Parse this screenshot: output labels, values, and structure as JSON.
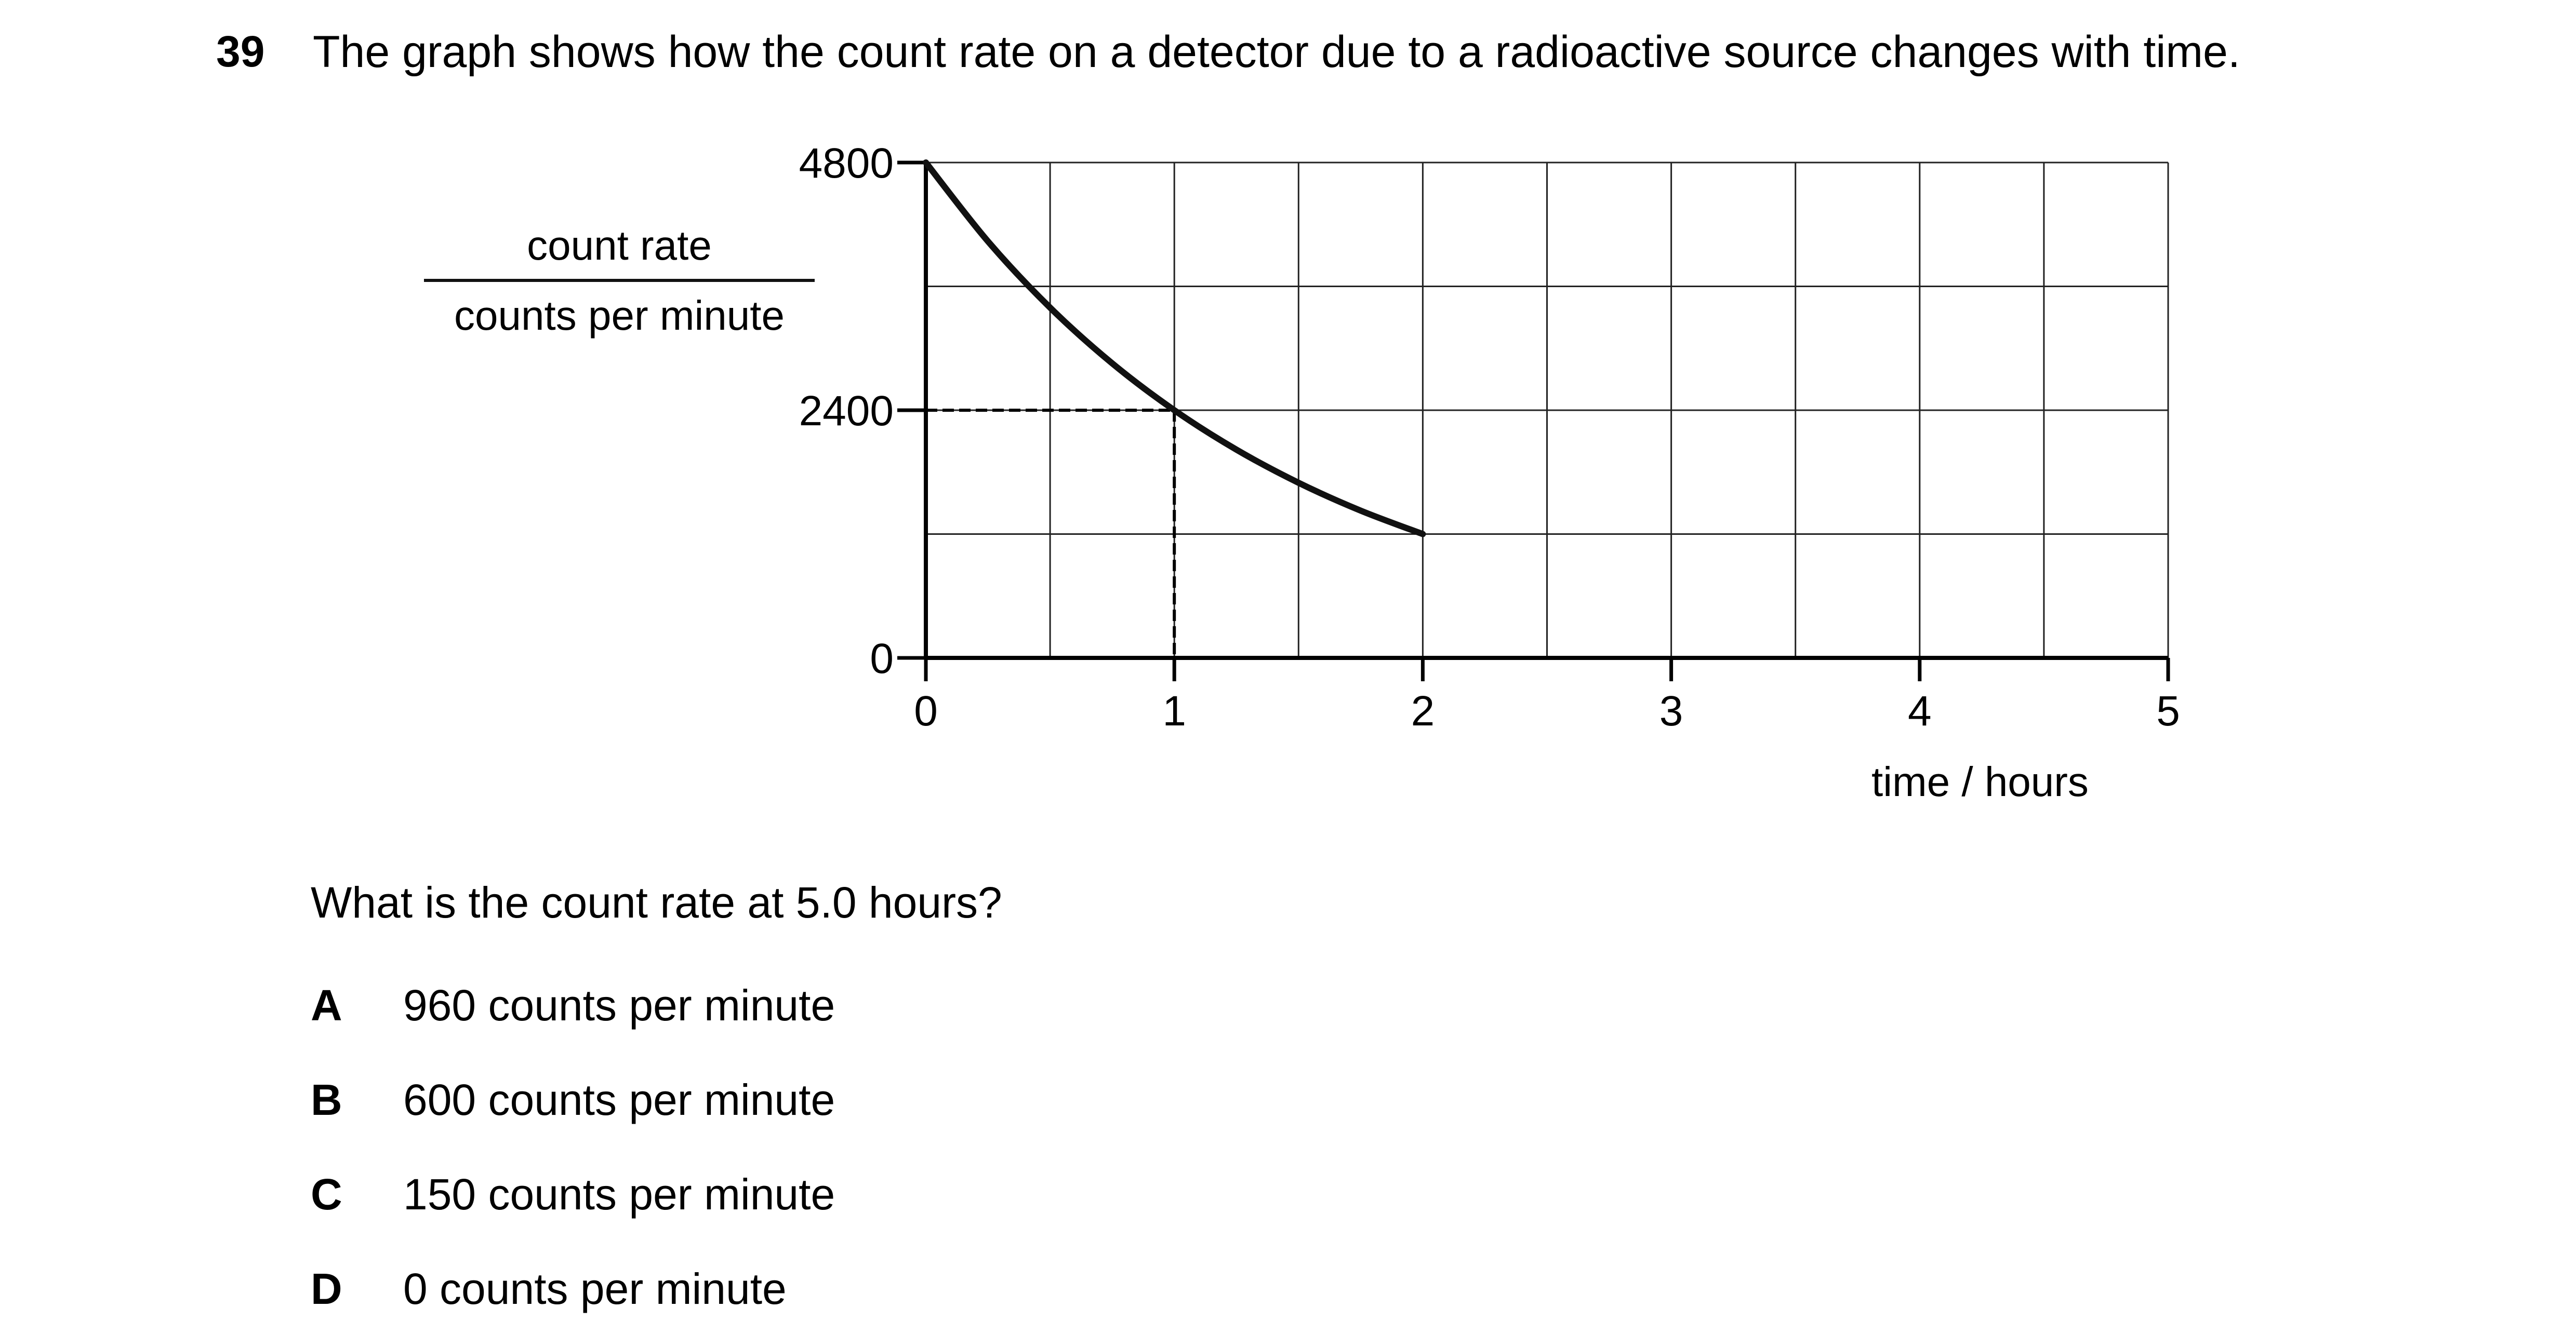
{
  "question": {
    "number": "39",
    "stem": "The graph shows how the count rate on a detector due to a radioactive source changes with time.",
    "prompt": "What is the count rate at 5.0 hours?",
    "options": [
      {
        "letter": "A",
        "text": "960 counts per minute"
      },
      {
        "letter": "B",
        "text": "600 counts per minute"
      },
      {
        "letter": "C",
        "text": "150 counts per minute"
      },
      {
        "letter": "D",
        "text": "0 counts per minute"
      }
    ]
  },
  "chart_data": {
    "type": "line",
    "ylabel_numerator": "count rate",
    "ylabel_denominator": "counts per minute",
    "xlabel": "time / hours",
    "xlim": [
      0,
      5
    ],
    "ylim": [
      0,
      4800
    ],
    "x_ticks": [
      "0",
      "1",
      "2",
      "3",
      "4",
      "5"
    ],
    "y_ticks": [
      "0",
      "2400",
      "4800"
    ],
    "grid": true,
    "grid_x_step": 0.5,
    "grid_y_step": 1200,
    "series": [
      {
        "x": [
          0,
          0.25,
          0.5,
          0.75,
          1.0,
          1.25,
          1.5,
          1.75,
          2.0
        ],
        "values": [
          4800,
          4036,
          3394,
          2854,
          2400,
          2018,
          1697,
          1427,
          1200
        ]
      }
    ],
    "reference_lines": {
      "x": 1,
      "y": 2400,
      "style": "dashed"
    }
  }
}
